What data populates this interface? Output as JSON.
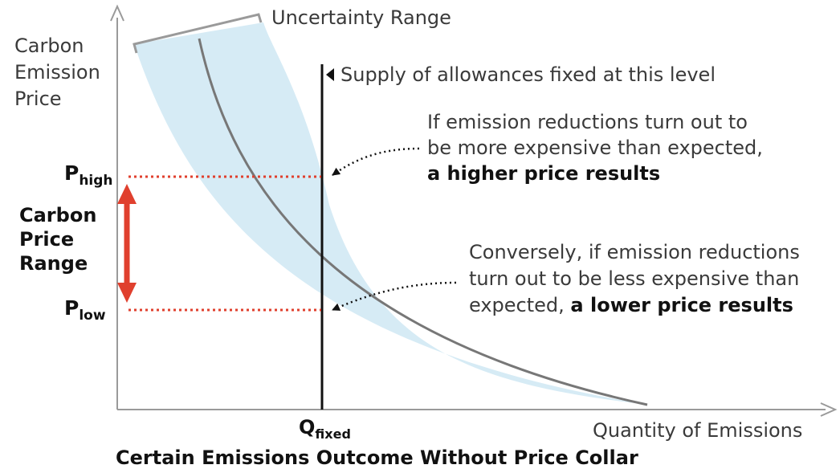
{
  "labels": {
    "y_axis_lines": [
      "Carbon",
      "Emission",
      "Price"
    ],
    "x_axis": "Quantity of Emissions",
    "uncertainty": "Uncertainty Range",
    "supply_note": "Supply of allowances fixed at this level",
    "p_high_main": "P",
    "p_high_sub": "high",
    "p_low_main": "P",
    "p_low_sub": "low",
    "q_main": "Q",
    "q_sub": "fixed",
    "price_range_lines": [
      "Carbon",
      "Price",
      "Range"
    ],
    "caption": "Certain Emissions Outcome Without Price Collar"
  },
  "annotations": {
    "high": {
      "line1": "If emission reductions turn out to",
      "line2": "be more expensive than expected,",
      "bold": "a higher price results"
    },
    "low": {
      "line1": "Conversely, if emission reductions",
      "line2": "turn out to be less expensive than",
      "line3_plain": "expected, ",
      "line3_bold": "a lower price results"
    }
  },
  "colors": {
    "band": "#d6ebf5",
    "curve": "#777777",
    "price_range": "#e0402e",
    "axis": "#9a9a9a",
    "supply_line": "#111111",
    "bracket": "#9a9a9a"
  }
}
